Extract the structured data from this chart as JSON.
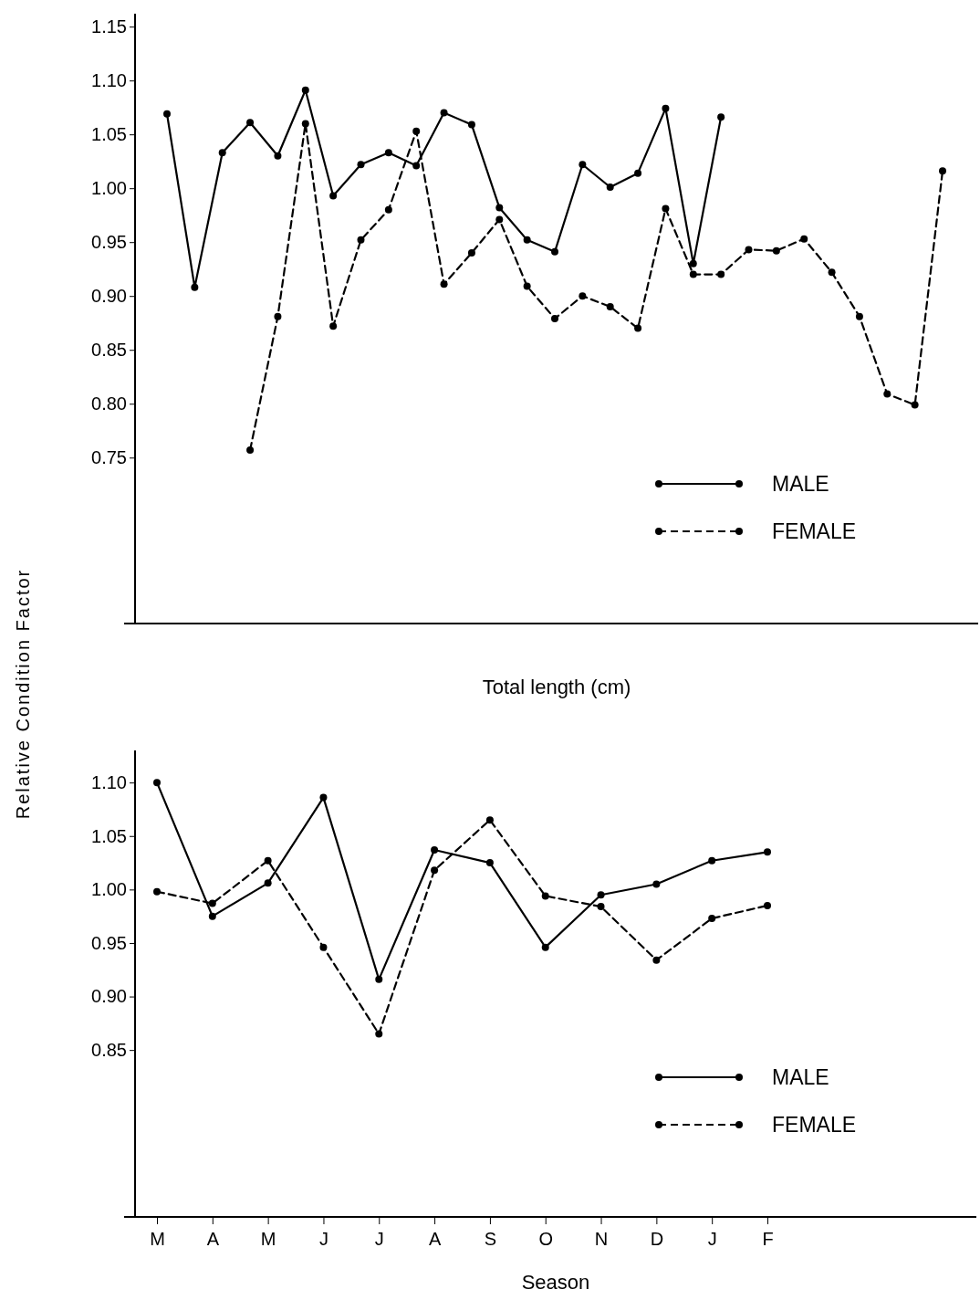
{
  "chart_data": [
    {
      "type": "line",
      "xlabel": "Total length (cm)",
      "ylabel": "Relative Condition Factor",
      "categories": [
        null,
        null,
        null,
        null,
        null,
        null,
        null,
        null,
        null,
        null,
        null,
        null,
        null,
        null,
        null,
        null,
        null,
        null,
        null,
        null,
        null,
        null,
        null,
        null,
        null,
        null,
        null,
        null,
        null
      ],
      "ylim": [
        0.596,
        1.162
      ],
      "yticks": [
        {
          "value": 0.75,
          "label": "0.75"
        },
        {
          "value": 0.8,
          "label": "0.80"
        },
        {
          "value": 0.85,
          "label": "0.85"
        },
        {
          "value": 0.9,
          "label": "0.90"
        },
        {
          "value": 0.95,
          "label": "0.95"
        },
        {
          "value": 1.0,
          "label": "1.00"
        },
        {
          "value": 1.05,
          "label": "1.05"
        },
        {
          "value": 1.1,
          "label": "1.10"
        },
        {
          "value": 1.15,
          "label": "1.15"
        }
      ],
      "tick_labels": "y",
      "legend": "bottom right",
      "marker": "circle",
      "series": [
        {
          "name": "MALE",
          "color": "#000000",
          "line_style": "solid",
          "values": [
            1.069,
            0.908,
            1.033,
            1.061,
            1.03,
            1.091,
            0.993,
            1.022,
            1.033,
            1.021,
            1.07,
            1.059,
            0.982,
            0.952,
            0.941,
            1.022,
            1.001,
            1.014,
            1.074,
            0.93,
            1.066,
            null,
            null,
            null,
            null,
            null,
            null,
            null,
            null
          ]
        },
        {
          "name": "FEMALE",
          "color": "#000000",
          "line_style": "dashed",
          "values": [
            null,
            null,
            null,
            0.757,
            0.881,
            1.06,
            0.872,
            0.952,
            0.98,
            1.053,
            0.911,
            0.94,
            0.971,
            0.909,
            0.879,
            0.9,
            0.89,
            0.87,
            0.981,
            0.92,
            0.92,
            0.943,
            0.942,
            0.953,
            0.922,
            0.881,
            0.809,
            0.799,
            1.016
          ]
        }
      ]
    },
    {
      "type": "line",
      "xlabel": "Season",
      "categories": [
        "M",
        "A",
        "M",
        "J",
        "J",
        "A",
        "S",
        "O",
        "N",
        "D",
        "J",
        "F"
      ],
      "ylim": [
        0.694,
        1.13
      ],
      "yticks": [
        {
          "value": 0.85,
          "label": "0.85"
        },
        {
          "value": 0.9,
          "label": "0.90"
        },
        {
          "value": 0.95,
          "label": "0.95"
        },
        {
          "value": 1.0,
          "label": "1.00"
        },
        {
          "value": 1.05,
          "label": "1.05"
        },
        {
          "value": 1.1,
          "label": "1.10"
        }
      ],
      "legend": "bottom right",
      "marker": "circle",
      "series": [
        {
          "name": "MALE",
          "color": "#000000",
          "line_style": "solid",
          "values": [
            1.1,
            0.975,
            1.006,
            1.086,
            0.916,
            1.037,
            1.025,
            0.946,
            0.995,
            1.005,
            1.027,
            1.035
          ]
        },
        {
          "name": "FEMALE",
          "color": "#000000",
          "line_style": "dashed",
          "values": [
            0.998,
            0.987,
            1.027,
            0.946,
            0.865,
            1.018,
            1.065,
            0.994,
            0.984,
            0.934,
            0.973,
            0.985
          ]
        }
      ]
    }
  ]
}
